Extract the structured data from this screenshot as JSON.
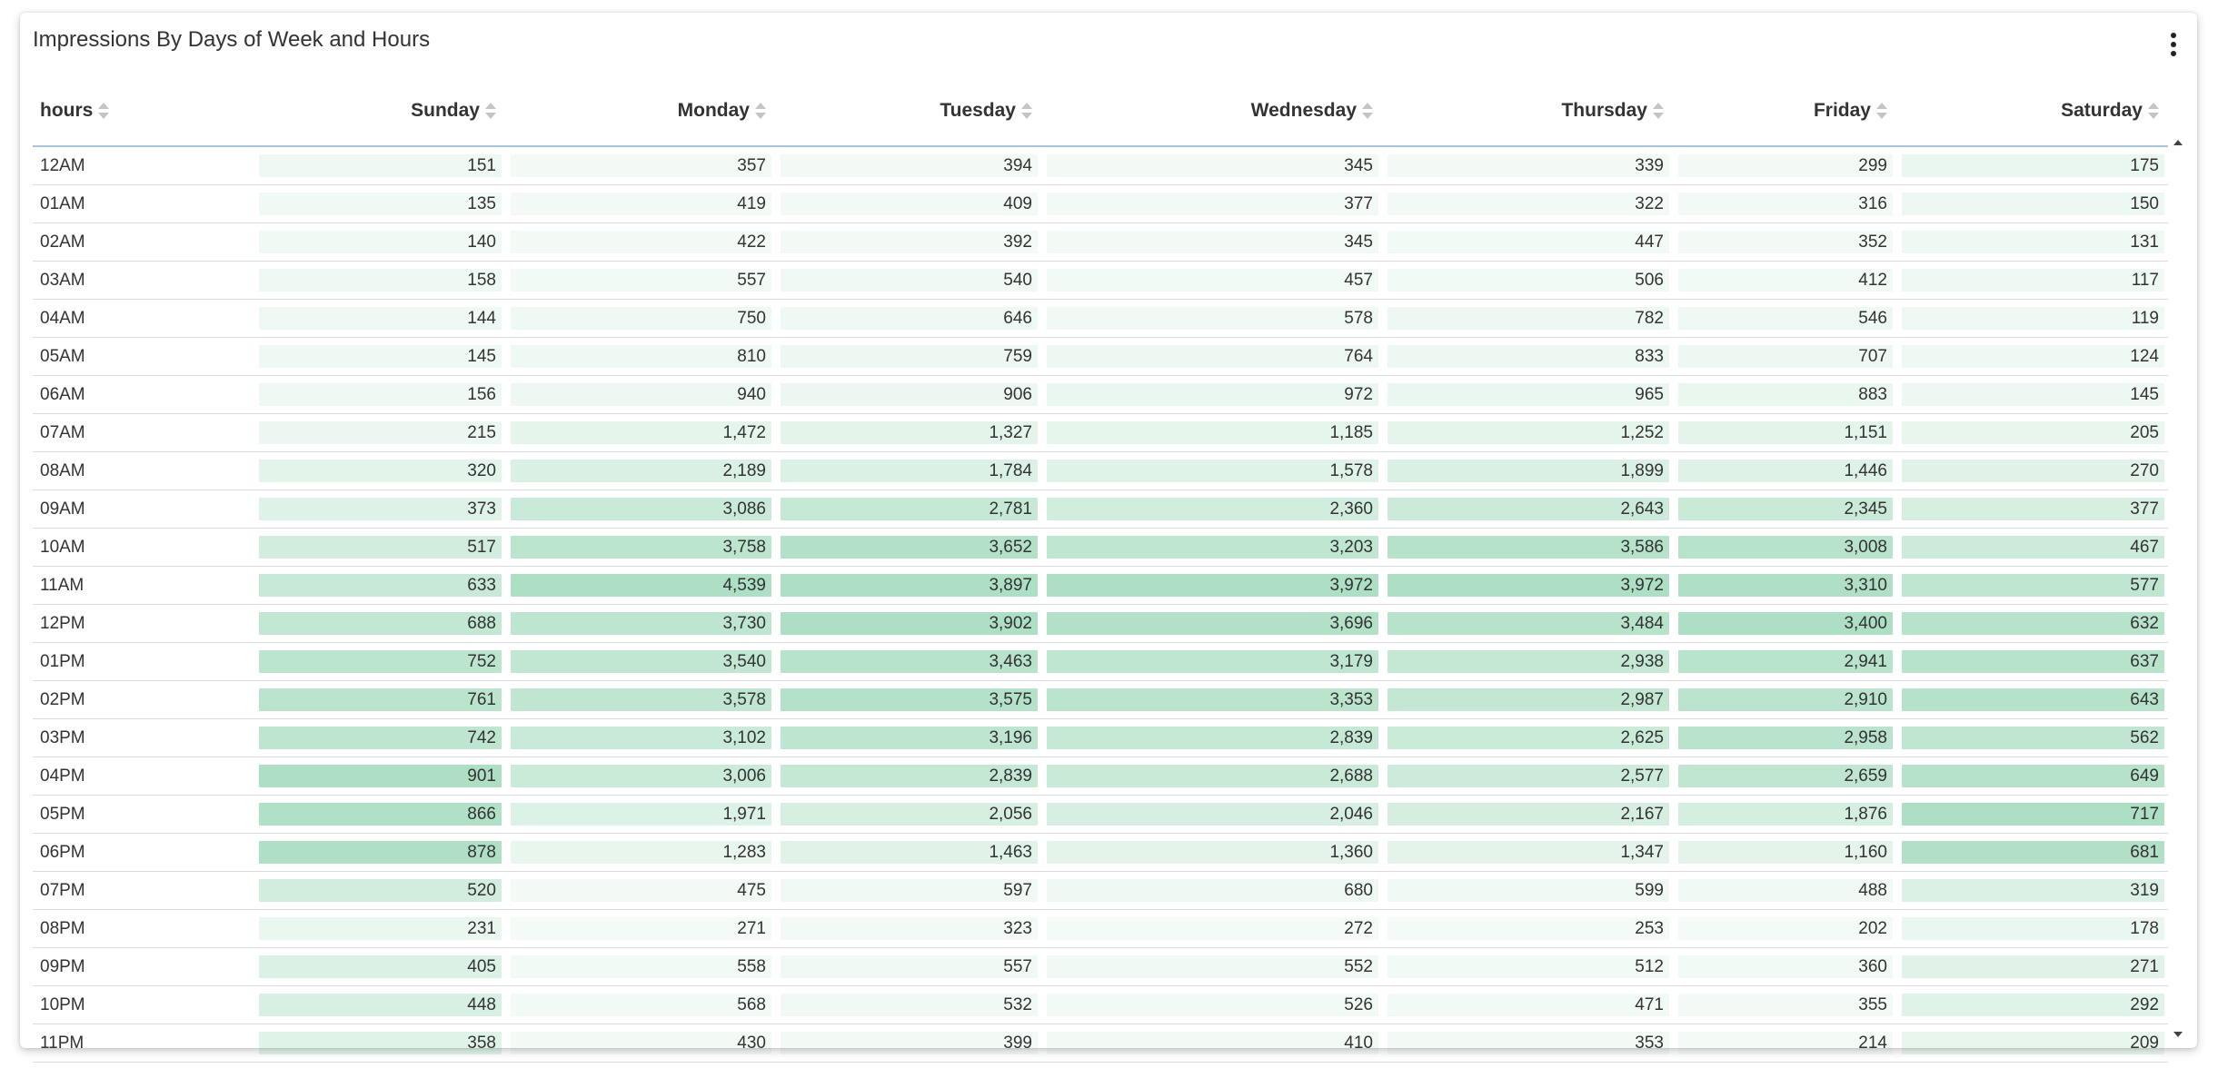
{
  "title": "Impressions By Days of Week and Hours",
  "colors": {
    "bar": "#4fba7f",
    "header_border": "#a9c5e0"
  },
  "chart_data": {
    "type": "table",
    "columns": [
      "hours",
      "Sunday",
      "Monday",
      "Tuesday",
      "Wednesday",
      "Thursday",
      "Friday",
      "Saturday"
    ],
    "rows": [
      {
        "hour": "12AM",
        "values": [
          151,
          357,
          394,
          345,
          339,
          299,
          175
        ]
      },
      {
        "hour": "01AM",
        "values": [
          135,
          419,
          409,
          377,
          322,
          316,
          150
        ]
      },
      {
        "hour": "02AM",
        "values": [
          140,
          422,
          392,
          345,
          447,
          352,
          131
        ]
      },
      {
        "hour": "03AM",
        "values": [
          158,
          557,
          540,
          457,
          506,
          412,
          117
        ]
      },
      {
        "hour": "04AM",
        "values": [
          144,
          750,
          646,
          578,
          782,
          546,
          119
        ]
      },
      {
        "hour": "05AM",
        "values": [
          145,
          810,
          759,
          764,
          833,
          707,
          124
        ]
      },
      {
        "hour": "06AM",
        "values": [
          156,
          940,
          906,
          972,
          965,
          883,
          145
        ]
      },
      {
        "hour": "07AM",
        "values": [
          215,
          1472,
          1327,
          1185,
          1252,
          1151,
          205
        ]
      },
      {
        "hour": "08AM",
        "values": [
          320,
          2189,
          1784,
          1578,
          1899,
          1446,
          270
        ]
      },
      {
        "hour": "09AM",
        "values": [
          373,
          3086,
          2781,
          2360,
          2643,
          2345,
          377
        ]
      },
      {
        "hour": "10AM",
        "values": [
          517,
          3758,
          3652,
          3203,
          3586,
          3008,
          467
        ]
      },
      {
        "hour": "11AM",
        "values": [
          633,
          4539,
          3897,
          3972,
          3972,
          3310,
          577
        ]
      },
      {
        "hour": "12PM",
        "values": [
          688,
          3730,
          3902,
          3696,
          3484,
          3400,
          632
        ]
      },
      {
        "hour": "01PM",
        "values": [
          752,
          3540,
          3463,
          3179,
          2938,
          2941,
          637
        ]
      },
      {
        "hour": "02PM",
        "values": [
          761,
          3578,
          3575,
          3353,
          2987,
          2910,
          643
        ]
      },
      {
        "hour": "03PM",
        "values": [
          742,
          3102,
          3196,
          2839,
          2625,
          2958,
          562
        ]
      },
      {
        "hour": "04PM",
        "values": [
          901,
          3006,
          2839,
          2688,
          2577,
          2659,
          649
        ]
      },
      {
        "hour": "05PM",
        "values": [
          866,
          1971,
          2056,
          2046,
          2167,
          1876,
          717
        ]
      },
      {
        "hour": "06PM",
        "values": [
          878,
          1283,
          1463,
          1360,
          1347,
          1160,
          681
        ]
      },
      {
        "hour": "07PM",
        "values": [
          520,
          475,
          597,
          680,
          599,
          488,
          319
        ]
      },
      {
        "hour": "08PM",
        "values": [
          231,
          271,
          323,
          272,
          253,
          202,
          178
        ]
      },
      {
        "hour": "09PM",
        "values": [
          405,
          558,
          557,
          552,
          512,
          360,
          271
        ]
      },
      {
        "hour": "10PM",
        "values": [
          448,
          568,
          532,
          526,
          471,
          355,
          292
        ]
      },
      {
        "hour": "11PM",
        "values": [
          358,
          430,
          399,
          410,
          353,
          214,
          209
        ]
      }
    ]
  }
}
